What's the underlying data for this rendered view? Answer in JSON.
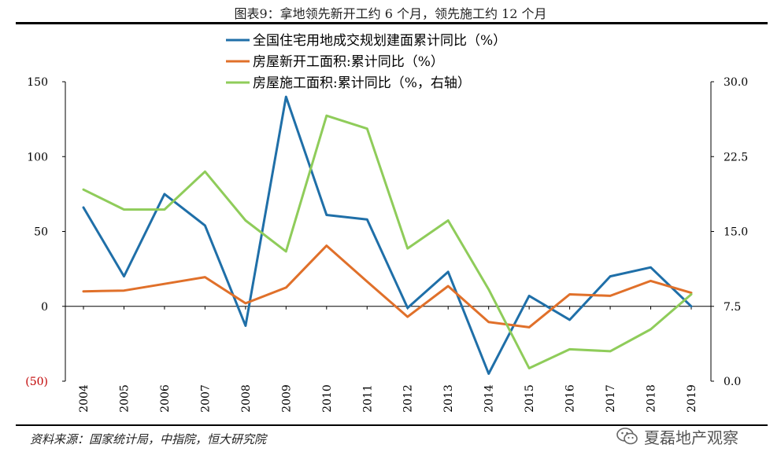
{
  "title": "图表9：拿地领先新开工约 6 个月，领先施工约 12 个月",
  "source": "资料来源：国家统计局，中指院，恒大研究院",
  "watermark": "夏磊地产观察",
  "chart_data": {
    "type": "line",
    "x": [
      "2004",
      "2005",
      "2006",
      "2007",
      "2008",
      "2009",
      "2010",
      "2011",
      "2012",
      "2013",
      "2014",
      "2015",
      "2016",
      "2017",
      "2018",
      "2019"
    ],
    "left_axis": {
      "min": -50,
      "max": 150,
      "ticks": [
        150,
        100,
        50,
        0,
        -50
      ],
      "tick_labels": [
        "150",
        "100",
        "50",
        "0",
        "(50)"
      ]
    },
    "right_axis": {
      "min": 0,
      "max": 30,
      "ticks": [
        30,
        22.5,
        15,
        7.5,
        0
      ],
      "tick_labels": [
        "30.0",
        "22.5",
        "15.0",
        "7.5",
        "0.0"
      ]
    },
    "series": [
      {
        "name": "全国住宅用地成交规划建面累计同比（%）",
        "axis": "left",
        "color": "#1f6fa8",
        "values": [
          66,
          20,
          75,
          54,
          -13,
          140,
          61,
          58,
          -1,
          23,
          -45,
          7,
          -9,
          20,
          26,
          0
        ]
      },
      {
        "name": "房屋新开工面积:累计同比（%）",
        "axis": "left",
        "color": "#e0702a",
        "values": [
          10,
          10.5,
          15,
          19.5,
          2,
          12.5,
          40.5,
          16.5,
          -7,
          13.5,
          -10.5,
          -14,
          8,
          7,
          17,
          9
        ]
      },
      {
        "name": "房屋施工面积:累计同比（%，右轴）",
        "axis": "right",
        "color": "#8fcc5a",
        "values": [
          19.2,
          17.2,
          17.2,
          21,
          16.1,
          13,
          26.6,
          25.3,
          13.3,
          16.1,
          9.2,
          1.3,
          3.2,
          3,
          5.2,
          8.7
        ]
      }
    ],
    "legend_position": "top-center",
    "grid": false
  }
}
